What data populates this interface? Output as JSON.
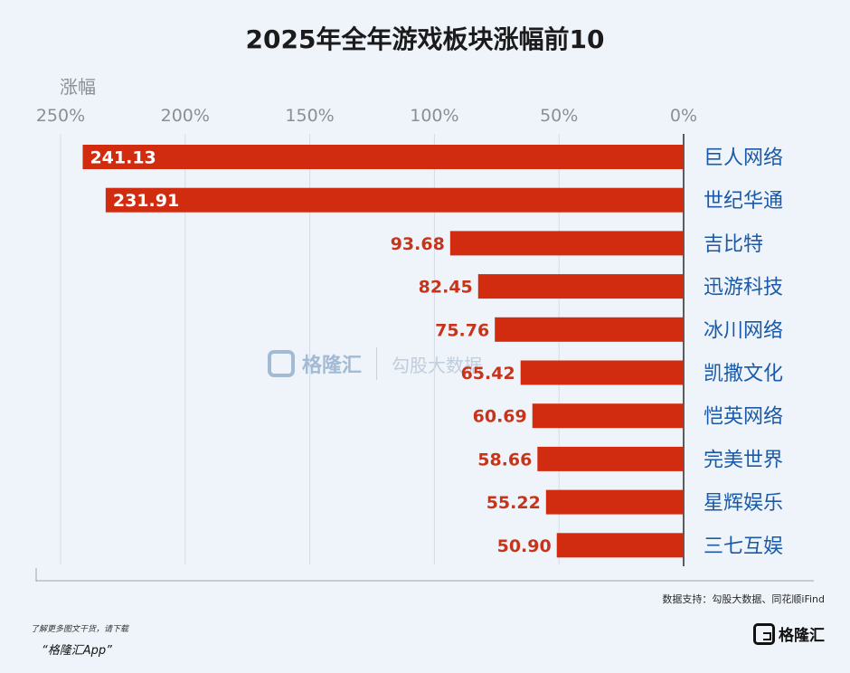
{
  "title": "2025年全年游戏板块涨幅前10",
  "watermark": {
    "brand": "格隆汇",
    "partner": "勾股大数据"
  },
  "source": "数据支持：勾股大数据、同花顺iFind",
  "promo_line1": "了解更多图文干货，请下载",
  "promo_line2": "“格隆汇App”",
  "logo_text": "格隆汇",
  "colors": {
    "bar": "#d12c10",
    "label": "#1a5aa8",
    "value_outside": "#c8341a",
    "value_inside": "#ffffff"
  },
  "chart_data": {
    "type": "bar",
    "orientation": "horizontal",
    "x_direction": "reversed",
    "title": "2025年全年游戏板块涨幅前10",
    "xlabel": "涨幅",
    "ylabel": "",
    "xlim": [
      0,
      250
    ],
    "tick_values": [
      250,
      200,
      150,
      100,
      50,
      0
    ],
    "tick_labels": [
      "250%",
      "200%",
      "150%",
      "100%",
      "50%",
      "0%"
    ],
    "grid": true,
    "categories": [
      "巨人网络",
      "世纪华通",
      "吉比特",
      "迅游科技",
      "冰川网络",
      "凯撒文化",
      "恺英网络",
      "完美世界",
      "星辉娱乐",
      "三七互娱"
    ],
    "values": [
      241.13,
      231.91,
      93.68,
      82.45,
      75.76,
      65.42,
      60.69,
      58.66,
      55.22,
      50.9
    ],
    "value_labels": [
      "241.13",
      "231.91",
      "93.68",
      "82.45",
      "75.76",
      "65.42",
      "60.69",
      "58.66",
      "55.22",
      "50.90"
    ]
  }
}
